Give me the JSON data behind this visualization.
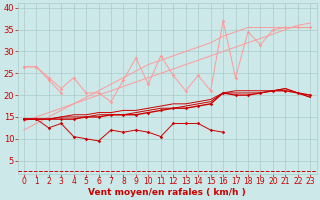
{
  "bg_color": "#cce8e8",
  "grid_color": "#aacccc",
  "xlabel": "Vent moyen/en rafales ( km/h )",
  "xlabel_color": "#cc0000",
  "xlabel_fontsize": 6.5,
  "tick_color": "#cc0000",
  "tick_fontsize": 5.5,
  "ytick_fontsize": 6,
  "xlim": [
    -0.5,
    23.5
  ],
  "ylim": [
    2,
    41
  ],
  "yticks": [
    5,
    10,
    15,
    20,
    25,
    30,
    35,
    40
  ],
  "xticks": [
    0,
    1,
    2,
    3,
    4,
    5,
    6,
    7,
    8,
    9,
    10,
    11,
    12,
    13,
    14,
    15,
    16,
    17,
    18,
    19,
    20,
    21,
    22,
    23
  ],
  "x": [
    0,
    1,
    2,
    3,
    4,
    5,
    6,
    7,
    8,
    9,
    10,
    11,
    12,
    13,
    14,
    15,
    16,
    17,
    18,
    19,
    20,
    21,
    22,
    23
  ],
  "line_upper_light": [
    26.5,
    26.5,
    24.0,
    21.5,
    24.0,
    20.5,
    20.5,
    18.5,
    23.5,
    28.5,
    22.5,
    29.0,
    24.5,
    21.0,
    24.5,
    21.0,
    37.0,
    24.0,
    34.5,
    31.5,
    35.0,
    35.5,
    35.5,
    35.5
  ],
  "line_upper2_light": [
    26.5,
    26.5,
    23.5,
    20.5,
    null,
    null,
    null,
    null,
    null,
    null,
    null,
    null,
    null,
    null,
    null,
    null,
    null,
    null,
    null,
    null,
    null,
    null,
    null,
    null
  ],
  "line_trend_light1": [
    14.0,
    15.0,
    16.0,
    17.0,
    18.0,
    19.0,
    20.0,
    21.0,
    22.0,
    23.0,
    24.0,
    25.0,
    26.0,
    27.0,
    28.0,
    29.0,
    30.0,
    31.0,
    32.0,
    33.0,
    34.0,
    35.0,
    36.0,
    36.5
  ],
  "line_trend_light2": [
    12.0,
    13.5,
    15.0,
    16.5,
    18.0,
    19.5,
    21.0,
    22.5,
    24.0,
    25.5,
    27.0,
    28.0,
    29.0,
    30.0,
    31.0,
    32.0,
    33.5,
    34.5,
    35.5,
    35.5,
    35.5,
    35.5,
    35.5,
    35.5
  ],
  "line_dark_lower": [
    14.5,
    14.5,
    12.5,
    13.5,
    10.5,
    10.0,
    9.5,
    12.0,
    11.5,
    12.0,
    11.5,
    10.5,
    13.5,
    13.5,
    13.5,
    12.0,
    11.5,
    null,
    null,
    null,
    null,
    null,
    null,
    null
  ],
  "line_dark_main1": [
    14.5,
    14.5,
    14.5,
    14.5,
    14.5,
    15.0,
    15.0,
    15.5,
    15.5,
    15.5,
    16.0,
    16.5,
    17.0,
    17.0,
    17.5,
    18.0,
    20.5,
    20.0,
    20.0,
    20.5,
    21.0,
    21.0,
    20.5,
    20.0
  ],
  "line_dark_main2": [
    14.5,
    14.5,
    14.5,
    15.0,
    15.0,
    15.0,
    15.5,
    15.5,
    15.5,
    16.0,
    16.5,
    17.0,
    17.0,
    17.5,
    18.0,
    18.5,
    20.5,
    20.5,
    20.5,
    20.5,
    21.0,
    21.5,
    20.5,
    19.5
  ],
  "line_dark_main3": [
    14.5,
    14.5,
    14.5,
    15.0,
    15.5,
    15.5,
    16.0,
    16.0,
    16.5,
    16.5,
    17.0,
    17.5,
    18.0,
    18.0,
    18.5,
    19.0,
    20.5,
    21.0,
    21.0,
    21.0,
    21.0,
    21.5,
    20.5,
    19.5
  ],
  "dashed_y": 2.5,
  "color_light": "#ff9999",
  "color_dark": "#cc0000",
  "marker_size": 1.8,
  "linewidth_thin": 0.7,
  "linewidth_thick": 1.0
}
